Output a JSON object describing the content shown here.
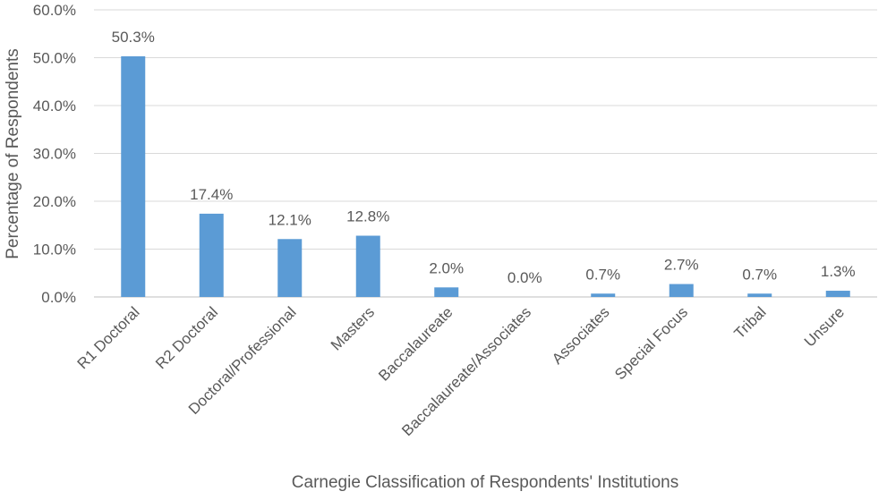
{
  "chart_data": {
    "type": "bar",
    "title": "",
    "xlabel": "Carnegie Classification of Respondents' Institutions",
    "ylabel": "Percentage of Respondents",
    "ylim": [
      0,
      60
    ],
    "yticks": [
      "0.0%",
      "10.0%",
      "20.0%",
      "30.0%",
      "40.0%",
      "50.0%",
      "60.0%"
    ],
    "ytick_values": [
      0,
      10,
      20,
      30,
      40,
      50,
      60
    ],
    "grid": true,
    "legend": "none",
    "bar_color": "#5b9bd5",
    "categories": [
      "R1 Doctoral",
      "R2 Doctoral",
      "Doctoral/Professional",
      "Masters",
      "Baccalaureate",
      "Baccalaureate/Associates",
      "Associates",
      "Special Focus",
      "Tribal",
      "Unsure"
    ],
    "values": [
      50.3,
      17.4,
      12.1,
      12.8,
      2.0,
      0.0,
      0.7,
      2.7,
      0.7,
      1.3
    ],
    "data_labels": [
      "50.3%",
      "17.4%",
      "12.1%",
      "12.8%",
      "2.0%",
      "0.0%",
      "0.7%",
      "2.7%",
      "0.7%",
      "1.3%"
    ]
  }
}
